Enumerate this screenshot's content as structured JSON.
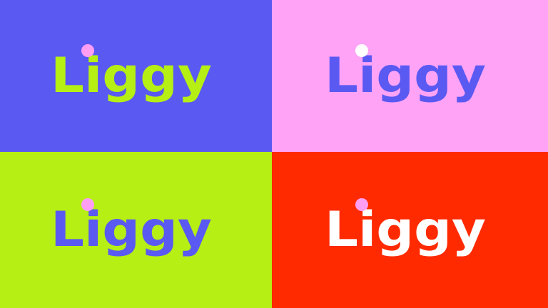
{
  "brand": {
    "wordmark": "Liggy"
  },
  "panels": [
    {
      "background": "#5a59f2",
      "wordmark_color": "#b5ef14",
      "dot_color": "#ff9ef3"
    },
    {
      "background": "#ffa3f7",
      "wordmark_color": "#5a59f2",
      "dot_color": "#ffffff"
    },
    {
      "background": "#b5ef14",
      "wordmark_color": "#5a59f2",
      "dot_color": "#ff9ef3"
    },
    {
      "background": "#ff2a00",
      "wordmark_color": "#ffffff",
      "dot_color": "#ff9ef3"
    }
  ]
}
